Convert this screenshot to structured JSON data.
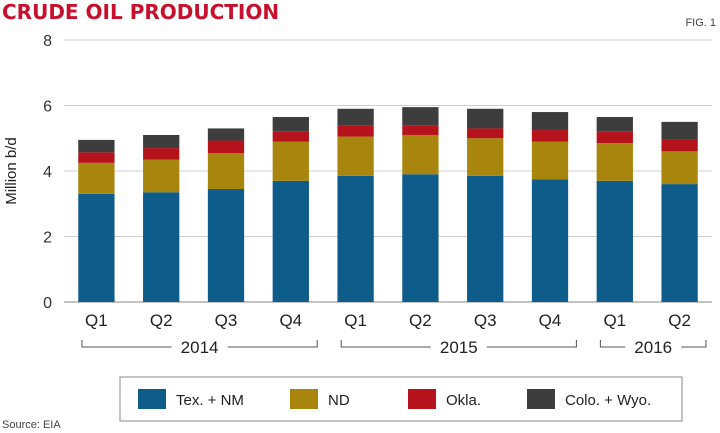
{
  "chart_data": {
    "type": "bar",
    "stacked": true,
    "title": "CRUDE OIL PRODUCTION",
    "figure_label": "FIG. 1",
    "ylabel": "Million b/d",
    "ylim": [
      0,
      8
    ],
    "yticks": [
      0,
      2,
      4,
      6,
      8
    ],
    "grid": true,
    "categories": [
      "Q1",
      "Q2",
      "Q3",
      "Q4",
      "Q1",
      "Q2",
      "Q3",
      "Q4",
      "Q1",
      "Q2"
    ],
    "year_groups": [
      {
        "label": "2014",
        "start": 0,
        "end": 3
      },
      {
        "label": "2015",
        "start": 4,
        "end": 7
      },
      {
        "label": "2016",
        "start": 8,
        "end": 9
      }
    ],
    "series": [
      {
        "name": "Tex. + NM",
        "color": "#0e5c8a",
        "values": [
          3.3,
          3.35,
          3.45,
          3.7,
          3.85,
          3.9,
          3.85,
          3.75,
          3.7,
          3.6
        ]
      },
      {
        "name": "ND",
        "color": "#a8860e",
        "values": [
          0.95,
          1.0,
          1.1,
          1.2,
          1.2,
          1.2,
          1.15,
          1.15,
          1.15,
          1.0
        ]
      },
      {
        "name": "Okla.",
        "color": "#b5121b",
        "values": [
          0.32,
          0.35,
          0.38,
          0.3,
          0.35,
          0.3,
          0.3,
          0.35,
          0.35,
          0.35
        ]
      },
      {
        "name": "Colo. + Wyo.",
        "color": "#3d3d3d",
        "values": [
          0.38,
          0.4,
          0.37,
          0.45,
          0.5,
          0.55,
          0.6,
          0.55,
          0.45,
          0.55
        ]
      }
    ],
    "legend_position": "bottom",
    "source": "Source: EIA"
  }
}
